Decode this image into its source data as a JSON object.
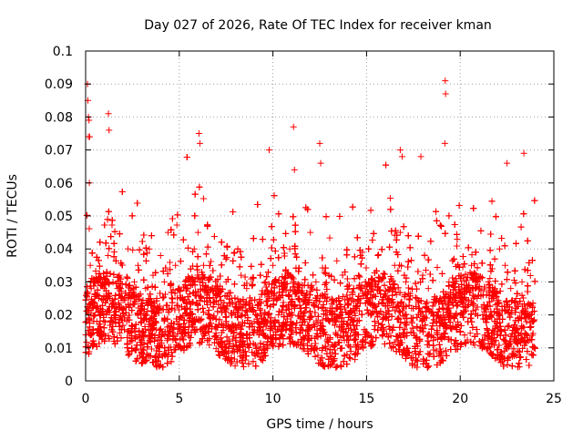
{
  "chart_data": {
    "type": "scatter",
    "title": "Day 027 of 2026, Rate Of TEC Index for receiver kman",
    "xlabel": "GPS time / hours",
    "ylabel": "ROTI / TECUs",
    "xlim": [
      0,
      25
    ],
    "ylim": [
      0,
      0.1
    ],
    "x_ticks": [
      "0",
      "5",
      "10",
      "15",
      "20",
      "25"
    ],
    "y_ticks": [
      "0",
      "0.01",
      "0.02",
      "0.03",
      "0.04",
      "0.05",
      "0.06",
      "0.07",
      "0.08",
      "0.09",
      "0.1"
    ],
    "grid": true,
    "legend": "none",
    "marker": "+",
    "color": "#ff0000",
    "series": [
      {
        "values_description_note": "",
        "x": [
          0.05,
          0.08,
          0.1,
          0.12,
          0.15,
          0.2,
          0.25,
          0.3,
          0.35,
          0.4,
          0.5,
          0.6,
          0.7,
          0.8,
          0.9,
          1.0,
          1.1,
          1.2,
          1.3,
          1.4,
          1.5,
          1.6,
          1.7,
          1.8,
          2.0,
          2.2,
          2.4,
          2.6,
          2.8,
          3.0,
          3.2,
          3.4,
          3.6,
          3.8,
          4.0,
          4.2,
          4.4,
          4.6,
          4.8,
          5.0,
          5.2,
          5.5,
          5.8,
          6.0,
          6.1,
          6.3,
          6.6,
          6.9,
          7.2,
          7.5,
          7.8,
          8.0,
          8.3,
          8.6,
          9.0,
          9.3,
          9.6,
          9.8,
          10.0,
          10.3,
          10.6,
          10.9,
          11.1,
          11.4,
          11.7,
          12.0,
          12.3,
          12.6,
          12.9,
          13.2,
          13.5,
          13.8,
          14.1,
          14.4,
          14.7,
          15.0,
          15.3,
          15.6,
          15.9,
          16.2,
          16.5,
          16.8,
          17.1,
          17.4,
          17.7,
          18.0,
          18.3,
          18.6,
          18.9,
          19.1,
          19.4,
          19.7,
          20.0,
          20.3,
          20.6,
          20.9,
          21.2,
          21.5,
          21.8,
          22.1,
          22.4,
          22.7,
          23.0,
          23.3,
          23.6,
          23.9,
          0.15,
          0.18,
          0.22,
          1.22,
          1.25,
          11.1,
          11.15,
          12.5,
          12.55,
          19.2,
          19.22,
          19.18,
          16.8,
          16.9,
          17.9,
          22.5,
          23.4,
          6.05,
          6.1,
          9.8
        ],
        "y": [
          0.018,
          0.027,
          0.09,
          0.085,
          0.074,
          0.06,
          0.035,
          0.028,
          0.022,
          0.03,
          0.02,
          0.018,
          0.025,
          0.022,
          0.03,
          0.028,
          0.02,
          0.038,
          0.025,
          0.018,
          0.012,
          0.02,
          0.028,
          0.032,
          0.022,
          0.018,
          0.025,
          0.03,
          0.035,
          0.022,
          0.028,
          0.04,
          0.032,
          0.025,
          0.038,
          0.03,
          0.045,
          0.022,
          0.035,
          0.028,
          0.015,
          0.03,
          0.04,
          0.045,
          0.03,
          0.035,
          0.025,
          0.028,
          0.022,
          0.03,
          0.025,
          0.02,
          0.032,
          0.028,
          0.018,
          0.022,
          0.03,
          0.025,
          0.035,
          0.02,
          0.028,
          0.04,
          0.03,
          0.025,
          0.018,
          0.045,
          0.03,
          0.022,
          0.02,
          0.018,
          0.025,
          0.015,
          0.02,
          0.022,
          0.028,
          0.025,
          0.03,
          0.038,
          0.02,
          0.025,
          0.035,
          0.045,
          0.03,
          0.022,
          0.025,
          0.032,
          0.028,
          0.02,
          0.018,
          0.022,
          0.03,
          0.025,
          0.02,
          0.028,
          0.035,
          0.025,
          0.02,
          0.03,
          0.025,
          0.04,
          0.035,
          0.028,
          0.025,
          0.03,
          0.02,
          0.018,
          0.08,
          0.079,
          0.074,
          0.081,
          0.076,
          0.077,
          0.064,
          0.072,
          0.066,
          0.091,
          0.087,
          0.072,
          0.07,
          0.068,
          0.068,
          0.066,
          0.069,
          0.075,
          0.072,
          0.07
        ]
      }
    ]
  }
}
